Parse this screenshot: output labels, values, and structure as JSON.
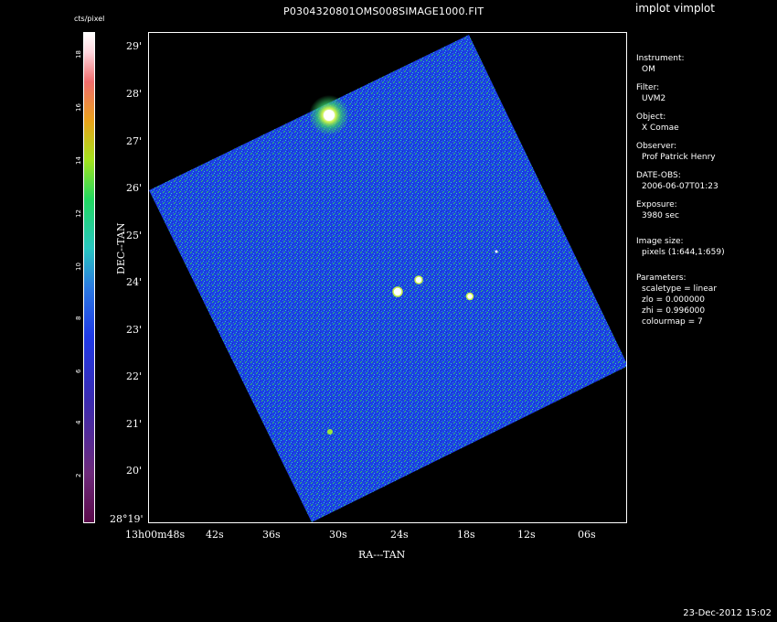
{
  "window": {
    "app_title": "implot vimplot",
    "file_title": "P0304320801OMS008SIMAGE1000.FIT",
    "datetime": "23-Dec-2012 15:02"
  },
  "colorbar": {
    "label": "cts/pixel",
    "ticks": [
      "2",
      "4",
      "6",
      "8",
      "10",
      "12",
      "14",
      "16",
      "18"
    ]
  },
  "axes": {
    "ylabel": "DEC--TAN",
    "xlabel": "RA---TAN",
    "yticks": [
      "29'",
      "28'",
      "27'",
      "26'",
      "25'",
      "24'",
      "23'",
      "22'",
      "21'",
      "20'",
      "28°19'"
    ],
    "xticks": [
      "13h00m48s",
      "42s",
      "36s",
      "30s",
      "24s",
      "18s",
      "12s",
      "06s"
    ]
  },
  "info": {
    "instrument_label": "Instrument:",
    "instrument": "OM",
    "filter_label": "Filter:",
    "filter": "UVM2",
    "object_label": "Object:",
    "object": "X Comae",
    "observer_label": "Observer:",
    "observer": "Prof Patrick Henry",
    "date_label": "DATE-OBS:",
    "date": "2006-06-07T01:23",
    "exposure_label": "Exposure:",
    "exposure": "3980 sec",
    "size_label": "Image size:",
    "size": "pixels (1:644,1:659)",
    "params_label": "Parameters:",
    "scaletype": "scaletype = linear",
    "zlo": "zlo = 0.000000",
    "zhi": "zhi = 0.996000",
    "colourmap": "colourmap =   7"
  },
  "colors": {
    "image_bg": "#1f3fe0",
    "noise_cyan": "#2ad0c8",
    "noise_green": "#34d35a"
  }
}
